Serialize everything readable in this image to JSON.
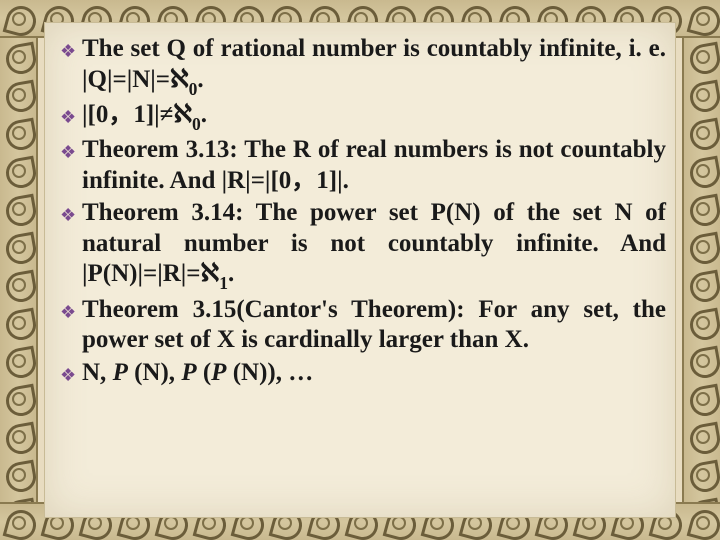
{
  "slide": {
    "background_paper": "#f3ecd9",
    "background_border": "#d4c69e",
    "border_swirl_color": "#6b5d3a",
    "bullet_color": "#7a4a8f",
    "text_color": "#1a1a1a",
    "font_family": "Times New Roman",
    "font_size_pt": 25,
    "font_weight": "bold",
    "line_height": 1.22,
    "text_align": "justify"
  },
  "bullets": {
    "glyph": "❖"
  },
  "items": [
    {
      "pre": "The set Q of rational number is countably infinite, i. e. |Q|=|N|=",
      "aleph": "ℵ",
      "sub": "0",
      "post": "."
    },
    {
      "pre": "|[0，1]|≠",
      "aleph": "ℵ",
      "sub": "0",
      "post": "."
    },
    {
      "pre": "Theorem 3.13: The R of real numbers is not countably infinite. And |R|=|[0，1]|.",
      "aleph": "",
      "sub": "",
      "post": ""
    },
    {
      "pre": "Theorem 3.14: The power set P(N) of the set N of natural number is not countably infinite. And |P(N)|=|R|=",
      "aleph": "ℵ",
      "sub": "1",
      "post": "."
    },
    {
      "pre": "Theorem 3.15(Cantor's Theorem): For any set, the power set of X is cardinally larger than X.",
      "aleph": "",
      "sub": "",
      "post": ""
    }
  ],
  "last_item": {
    "lead": "N, ",
    "p1": "P",
    "t1": " (N), ",
    "p2": "P",
    "t2": " (",
    "p3": "P",
    "t3": " (N)), …"
  }
}
